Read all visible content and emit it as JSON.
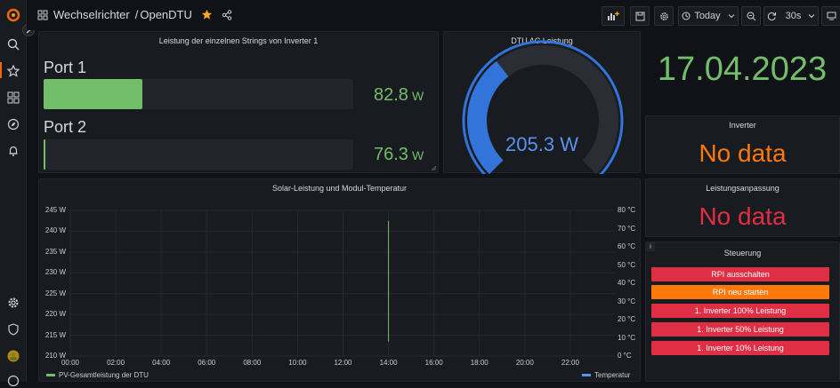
{
  "breadcrumb": {
    "folder": "Wechselrichter",
    "separator": "/",
    "dashboard": "OpenDTU"
  },
  "toolbar": {
    "time_range": "Today",
    "refresh": "30s"
  },
  "panels": {
    "strings": {
      "title": "Leistung der einzelnen Strings von Inverter 1",
      "ports": [
        {
          "label": "Port 1",
          "value": "82.8",
          "unit": "W",
          "fraction": 0.32
        },
        {
          "label": "Port 2",
          "value": "76.3",
          "unit": "W",
          "fraction": 0.005
        }
      ]
    },
    "ac": {
      "title": "DTU AC Leistung",
      "value": "205.3 W",
      "fraction": 0.36
    },
    "date": {
      "value": "17.04.2023"
    },
    "inverter": {
      "title": "Inverter",
      "value": "No data"
    },
    "limit": {
      "title": "Leistungsanpassung",
      "value": "No data"
    },
    "control": {
      "title": "Steuerung",
      "info": "i",
      "buttons": [
        {
          "label": "RPI ausschalten",
          "color": "#e02f44"
        },
        {
          "label": "RPI neu starten",
          "color": "#ff780a"
        },
        {
          "label": "1. Inverter 100% Leistung",
          "color": "#e02f44"
        },
        {
          "label": "1. Inverter 50% Leistung",
          "color": "#e02f44"
        },
        {
          "label": "1. Inverter 10% Leistung",
          "color": "#e02f44"
        }
      ]
    },
    "timeseries": {
      "title": "Solar-Leistung und Modul-Temperatur",
      "y_left": [
        "245 W",
        "240 W",
        "235 W",
        "230 W",
        "225 W",
        "220 W",
        "215 W",
        "210 W"
      ],
      "y_right": [
        "80 °C",
        "70 °C",
        "60 °C",
        "50 °C",
        "40 °C",
        "30 °C",
        "20 °C",
        "10 °C",
        "0 °C"
      ],
      "x": [
        "00:00",
        "02:00",
        "04:00",
        "06:00",
        "08:00",
        "10:00",
        "12:00",
        "14:00",
        "16:00",
        "18:00",
        "20:00",
        "22:00"
      ],
      "legend": [
        {
          "name": "PV-Gesamtleistung der DTU",
          "color": "#73bf69"
        },
        {
          "name": "Temperatur",
          "color": "#5794f2"
        }
      ]
    }
  },
  "chart_data": {
    "type": "line",
    "title": "Solar-Leistung und Modul-Temperatur",
    "x_range": [
      "00:00",
      "24:00"
    ],
    "ylim_left": [
      210,
      245
    ],
    "ylim_right": [
      0,
      80
    ],
    "series": [
      {
        "name": "PV-Gesamtleistung der DTU",
        "axis": "left",
        "points": [
          [
            "14:00",
            242.5
          ],
          [
            "14:00",
            213.5
          ]
        ]
      },
      {
        "name": "Temperatur",
        "axis": "right",
        "points": []
      }
    ]
  }
}
